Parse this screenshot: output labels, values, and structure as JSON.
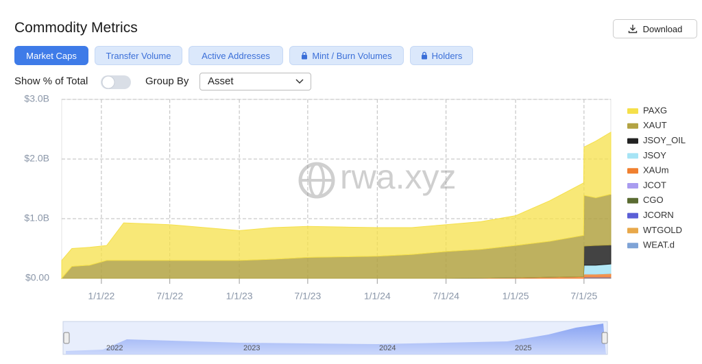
{
  "header": {
    "title": "Commodity Metrics",
    "download": "Download"
  },
  "tabs": [
    "Market Caps",
    "Transfer Volume",
    "Active Addresses",
    "Mint / Burn Volumes",
    "Holders"
  ],
  "controls": {
    "percent_toggle": "Show % of Total",
    "group_by": "Group By",
    "group_value": "Asset"
  },
  "watermark": "rwa.xyz",
  "navigator": {
    "labels": [
      "2022",
      "2023",
      "2024",
      "2025"
    ]
  },
  "chart_data": {
    "type": "stacked-area",
    "x": [
      "2021-09-18",
      "2021-10-15",
      "2021-12-01",
      "2022-01-15",
      "2022-03-01",
      "2022-07-01",
      "2022-10-01",
      "2023-01-01",
      "2023-04-01",
      "2023-07-01",
      "2023-10-01",
      "2024-01-01",
      "2024-04-01",
      "2024-07-01",
      "2024-10-01",
      "2025-01-01",
      "2025-04-01",
      "2025-06-30",
      "2025-07-01",
      "2025-08-01",
      "2025-09-10"
    ],
    "xlim": [
      "2021-09-18",
      "2025-09-10"
    ],
    "xticks": [
      {
        "value": "2022-01-01",
        "label": "1/1/22"
      },
      {
        "value": "2022-07-01",
        "label": "7/1/22"
      },
      {
        "value": "2023-01-01",
        "label": "1/1/23"
      },
      {
        "value": "2023-07-01",
        "label": "7/1/23"
      },
      {
        "value": "2024-01-01",
        "label": "1/1/24"
      },
      {
        "value": "2024-07-01",
        "label": "7/1/24"
      },
      {
        "value": "2025-01-01",
        "label": "1/1/25"
      },
      {
        "value": "2025-07-01",
        "label": "7/1/25"
      }
    ],
    "ylim": [
      0,
      3
    ],
    "yticks": [
      {
        "value": 0,
        "label": "$0.00"
      },
      {
        "value": 1,
        "label": "$1.0B"
      },
      {
        "value": 2,
        "label": "$2.0B"
      },
      {
        "value": 3,
        "label": "$3.0B"
      }
    ],
    "grid": true,
    "legend": "right",
    "series": [
      {
        "name": "PAXG",
        "color": "#f5e04a",
        "values": [
          0.3,
          0.3,
          0.3,
          0.25,
          0.63,
          0.6,
          0.55,
          0.5,
          0.53,
          0.52,
          0.5,
          0.48,
          0.45,
          0.45,
          0.465,
          0.5,
          0.68,
          0.88,
          0.81,
          0.95,
          1.04
        ]
      },
      {
        "name": "XAUT",
        "color": "#b3a343",
        "values": [
          0,
          0.2,
          0.22,
          0.3,
          0.3,
          0.3,
          0.3,
          0.3,
          0.32,
          0.35,
          0.36,
          0.37,
          0.4,
          0.45,
          0.48,
          0.54,
          0.6,
          0.69,
          0.85,
          0.8,
          0.85
        ]
      },
      {
        "name": "JSOY_OIL",
        "color": "#222222",
        "values": [
          0,
          0,
          0,
          0,
          0,
          0,
          0,
          0,
          0,
          0,
          0,
          0,
          0,
          0,
          0,
          0,
          0,
          0,
          0.32,
          0.33,
          0.32
        ]
      },
      {
        "name": "JSOY",
        "color": "#a6e4f5",
        "values": [
          0,
          0,
          0,
          0,
          0,
          0,
          0,
          0,
          0,
          0,
          0,
          0,
          0,
          0,
          0,
          0,
          0,
          0,
          0.15,
          0.15,
          0.16
        ]
      },
      {
        "name": "XAUm",
        "color": "#f08030",
        "values": [
          0,
          0,
          0,
          0,
          0,
          0,
          0,
          0,
          0,
          0,
          0,
          0,
          0,
          0,
          0.005,
          0.01,
          0.02,
          0.03,
          0.05,
          0.05,
          0.06
        ]
      },
      {
        "name": "JCOT",
        "color": "#a99cf0",
        "values": [
          0,
          0,
          0,
          0,
          0,
          0,
          0,
          0,
          0,
          0,
          0,
          0,
          0,
          0,
          0,
          0,
          0,
          0,
          0.005,
          0.005,
          0.005
        ]
      },
      {
        "name": "CGO",
        "color": "#5a6b32",
        "values": [
          0,
          0,
          0,
          0,
          0,
          0,
          0,
          0,
          0,
          0,
          0,
          0,
          0,
          0,
          0,
          0,
          0,
          0,
          0.005,
          0.005,
          0.005
        ]
      },
      {
        "name": "JCORN",
        "color": "#5b5fd6",
        "values": [
          0,
          0,
          0,
          0,
          0,
          0,
          0,
          0,
          0,
          0,
          0,
          0,
          0,
          0,
          0,
          0,
          0,
          0,
          0.005,
          0.005,
          0.005
        ]
      },
      {
        "name": "WTGOLD",
        "color": "#e8a84a",
        "values": [
          0,
          0,
          0,
          0,
          0,
          0,
          0,
          0,
          0,
          0,
          0,
          0,
          0,
          0,
          0,
          0,
          0,
          0,
          0.005,
          0.005,
          0.005
        ]
      },
      {
        "name": "WEAT.d",
        "color": "#7fa3d6",
        "values": [
          0,
          0,
          0,
          0,
          0,
          0,
          0,
          0,
          0,
          0,
          0,
          0,
          0,
          0,
          0,
          0,
          0,
          0,
          0,
          0,
          0
        ]
      }
    ]
  }
}
